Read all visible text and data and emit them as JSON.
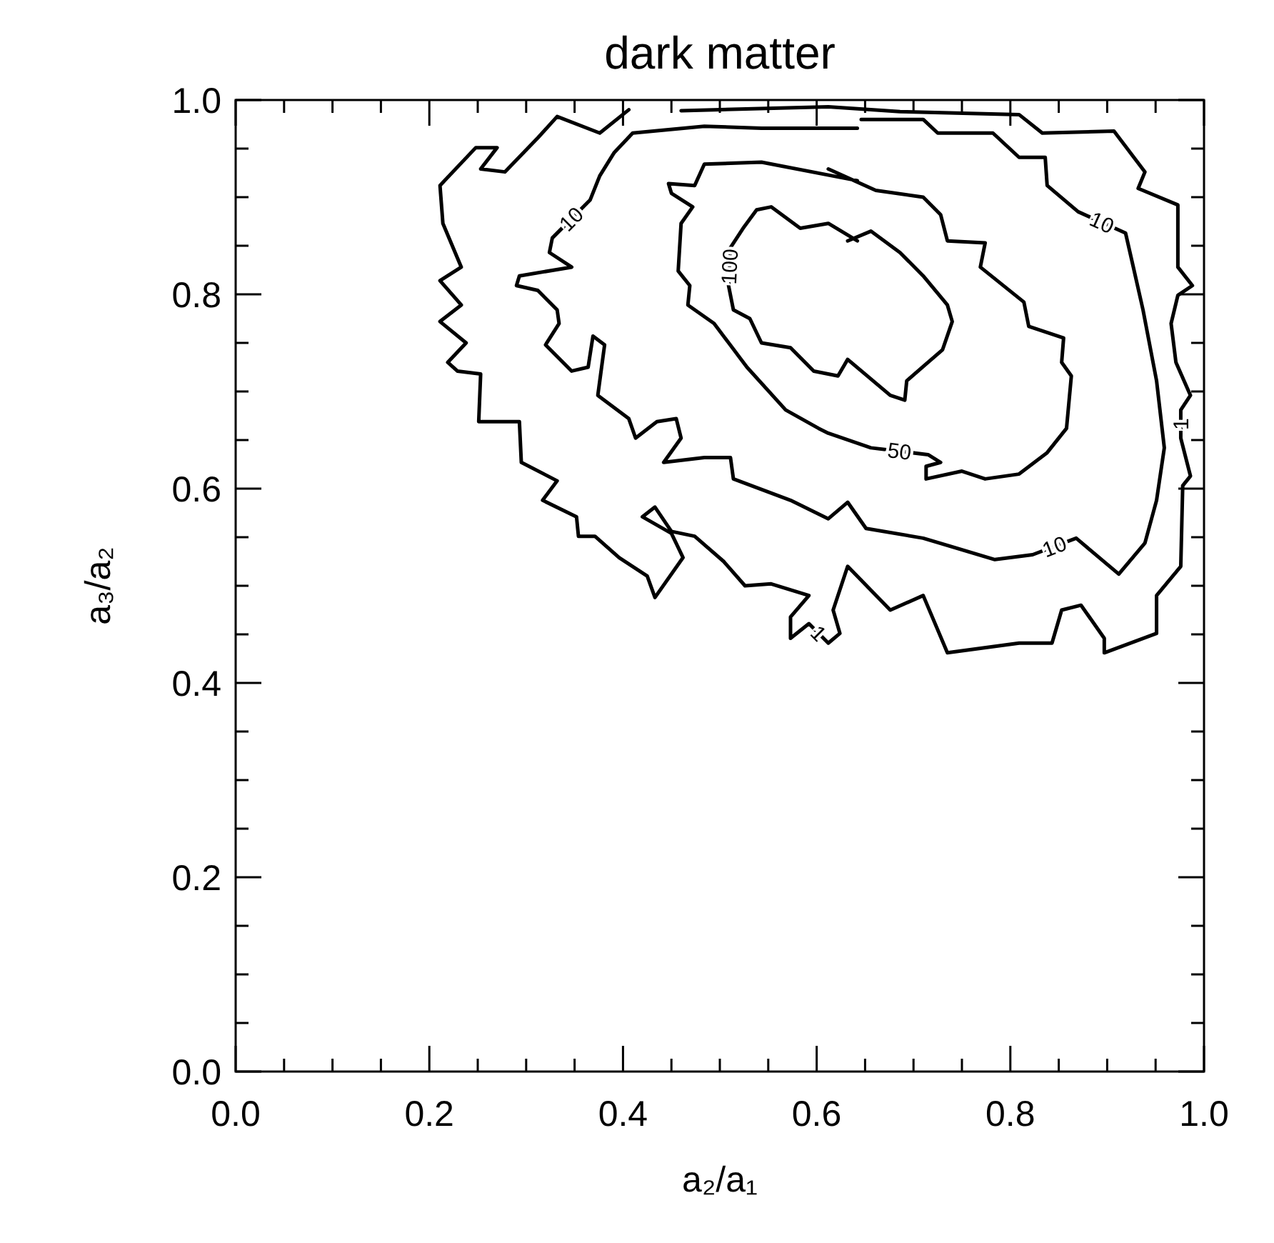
{
  "chart_data": {
    "type": "line",
    "title": "dark matter",
    "xlabel": "a₂/a₁",
    "ylabel": "a₃/a₂",
    "xlim": [
      0,
      1
    ],
    "ylim": [
      0,
      1
    ],
    "xticks": [
      {
        "value": 0,
        "label": "0.0"
      },
      {
        "value": 0.05,
        "label": null
      },
      {
        "value": 0.1,
        "label": null
      },
      {
        "value": 0.15,
        "label": null
      },
      {
        "value": 0.2,
        "label": "0.2"
      },
      {
        "value": 0.25,
        "label": null
      },
      {
        "value": 0.3,
        "label": null
      },
      {
        "value": 0.35,
        "label": null
      },
      {
        "value": 0.4,
        "label": "0.4"
      },
      {
        "value": 0.45,
        "label": null
      },
      {
        "value": 0.5,
        "label": null
      },
      {
        "value": 0.55,
        "label": null
      },
      {
        "value": 0.6,
        "label": "0.6"
      },
      {
        "value": 0.65,
        "label": null
      },
      {
        "value": 0.7,
        "label": null
      },
      {
        "value": 0.75,
        "label": null
      },
      {
        "value": 0.8,
        "label": "0.8"
      },
      {
        "value": 0.85,
        "label": null
      },
      {
        "value": 0.9,
        "label": null
      },
      {
        "value": 0.95,
        "label": null
      },
      {
        "value": 1,
        "label": "1.0"
      }
    ],
    "yticks": [
      {
        "value": 0,
        "label": "0.0"
      },
      {
        "value": 0.05,
        "label": null
      },
      {
        "value": 0.1,
        "label": null
      },
      {
        "value": 0.15,
        "label": null
      },
      {
        "value": 0.2,
        "label": "0.2"
      },
      {
        "value": 0.25,
        "label": null
      },
      {
        "value": 0.3,
        "label": null
      },
      {
        "value": 0.35,
        "label": null
      },
      {
        "value": 0.4,
        "label": "0.4"
      },
      {
        "value": 0.45,
        "label": null
      },
      {
        "value": 0.5,
        "label": null
      },
      {
        "value": 0.55,
        "label": null
      },
      {
        "value": 0.6,
        "label": "0.6"
      },
      {
        "value": 0.65,
        "label": null
      },
      {
        "value": 0.7,
        "label": null
      },
      {
        "value": 0.75,
        "label": null
      },
      {
        "value": 0.8,
        "label": "0.8"
      },
      {
        "value": 0.85,
        "label": null
      },
      {
        "value": 0.9,
        "label": null
      },
      {
        "value": 0.95,
        "label": null
      },
      {
        "value": 1,
        "label": "1.0"
      }
    ],
    "series": [
      {
        "name": "1",
        "color": "#000000",
        "x": [
          0.406,
          0.376,
          0.332,
          0.312,
          0.278,
          0.253,
          0.27,
          0.248,
          0.211,
          0.214,
          0.233,
          0.211,
          0.233,
          0.211,
          0.238,
          0.219,
          0.229,
          0.253,
          0.251,
          0.293,
          0.295,
          0.332,
          0.317,
          0.352,
          0.354,
          0.371,
          0.396,
          0.425,
          0.433,
          0.462,
          0.45,
          0.42,
          0.433,
          0.45,
          0.474,
          0.504,
          0.526,
          0.553,
          0.592,
          0.573,
          0.573,
          0.592,
          0.612,
          0.624,
          0.617,
          0.632,
          0.676,
          0.71,
          0.735,
          0.809,
          0.843,
          0.853,
          0.873,
          0.897,
          0.897,
          0.951,
          0.951,
          0.976,
          0.978,
          0.986,
          0.976,
          0.976,
          0.986,
          0.971,
          0.966,
          0.973,
          0.988,
          0.973,
          0.973,
          0.932,
          0.939,
          0.907,
          0.833,
          0.809,
          0.686,
          0.612,
          0.46
        ],
        "values": [
          0.99,
          0.966,
          0.983,
          0.961,
          0.926,
          0.929,
          0.951,
          0.951,
          0.912,
          0.873,
          0.828,
          0.814,
          0.789,
          0.772,
          0.75,
          0.73,
          0.721,
          0.718,
          0.669,
          0.669,
          0.627,
          0.608,
          0.588,
          0.571,
          0.551,
          0.551,
          0.529,
          0.51,
          0.488,
          0.529,
          0.554,
          0.571,
          0.581,
          0.556,
          0.551,
          0.525,
          0.5,
          0.502,
          0.49,
          0.468,
          0.446,
          0.461,
          0.441,
          0.451,
          0.475,
          0.52,
          0.475,
          0.49,
          0.431,
          0.441,
          0.441,
          0.475,
          0.48,
          0.446,
          0.431,
          0.451,
          0.49,
          0.52,
          0.603,
          0.613,
          0.652,
          0.681,
          0.696,
          0.73,
          0.77,
          0.799,
          0.809,
          0.828,
          0.892,
          0.909,
          0.926,
          0.968,
          0.966,
          0.985,
          0.988,
          0.993,
          0.989
        ]
      },
      {
        "name": "10",
        "color": "#000000",
        "x": [
          0.642,
          0.543,
          0.484,
          0.41,
          0.391,
          0.376,
          0.366,
          0.327,
          0.324,
          0.347,
          0.293,
          0.29,
          0.312,
          0.332,
          0.334,
          0.32,
          0.347,
          0.364,
          0.369,
          0.381,
          0.374,
          0.406,
          0.413,
          0.435,
          0.455,
          0.46,
          0.442,
          0.484,
          0.511,
          0.514,
          0.573,
          0.612,
          0.632,
          0.651,
          0.71,
          0.784,
          0.823,
          0.868,
          0.912,
          0.939,
          0.951,
          0.959,
          0.951,
          0.937,
          0.927,
          0.919,
          0.87,
          0.838,
          0.836,
          0.809,
          0.782,
          0.725,
          0.71,
          0.646
        ],
        "values": [
          0.971,
          0.971,
          0.973,
          0.966,
          0.946,
          0.922,
          0.897,
          0.858,
          0.843,
          0.828,
          0.819,
          0.809,
          0.804,
          0.784,
          0.77,
          0.748,
          0.721,
          0.725,
          0.757,
          0.748,
          0.696,
          0.672,
          0.652,
          0.669,
          0.672,
          0.652,
          0.627,
          0.632,
          0.632,
          0.61,
          0.588,
          0.569,
          0.586,
          0.559,
          0.549,
          0.527,
          0.532,
          0.549,
          0.512,
          0.544,
          0.588,
          0.642,
          0.711,
          0.784,
          0.828,
          0.863,
          0.885,
          0.912,
          0.941,
          0.941,
          0.966,
          0.966,
          0.98,
          0.98
        ]
      },
      {
        "name": "50",
        "color": "#000000",
        "x": [
          0.642,
          0.543,
          0.484,
          0.474,
          0.447,
          0.45,
          0.472,
          0.46,
          0.457,
          0.469,
          0.467,
          0.494,
          0.528,
          0.568,
          0.602,
          0.612,
          0.656,
          0.715,
          0.728,
          0.713,
          0.713,
          0.75,
          0.774,
          0.809,
          0.838,
          0.858,
          0.863,
          0.853,
          0.855,
          0.819,
          0.814,
          0.769,
          0.774,
          0.735,
          0.728,
          0.71,
          0.661,
          0.612
        ],
        "values": [
          0.917,
          0.936,
          0.934,
          0.912,
          0.914,
          0.904,
          0.89,
          0.873,
          0.824,
          0.809,
          0.789,
          0.77,
          0.725,
          0.681,
          0.662,
          0.657,
          0.642,
          0.635,
          0.627,
          0.623,
          0.61,
          0.618,
          0.61,
          0.615,
          0.637,
          0.662,
          0.716,
          0.73,
          0.755,
          0.767,
          0.792,
          0.828,
          0.853,
          0.855,
          0.882,
          0.9,
          0.907,
          0.929
        ]
      },
      {
        "name": "100",
        "color": "#000000",
        "x": [
          0.642,
          0.612,
          0.583,
          0.553,
          0.538,
          0.524,
          0.511,
          0.509,
          0.514,
          0.531,
          0.543,
          0.573,
          0.597,
          0.622,
          0.632,
          0.676,
          0.691,
          0.693,
          0.73,
          0.74,
          0.735,
          0.71,
          0.686,
          0.656,
          0.632
        ],
        "values": [
          0.855,
          0.873,
          0.868,
          0.89,
          0.887,
          0.868,
          0.848,
          0.809,
          0.784,
          0.775,
          0.75,
          0.745,
          0.721,
          0.716,
          0.733,
          0.696,
          0.691,
          0.711,
          0.743,
          0.772,
          0.789,
          0.819,
          0.843,
          0.865,
          0.855
        ]
      }
    ]
  }
}
